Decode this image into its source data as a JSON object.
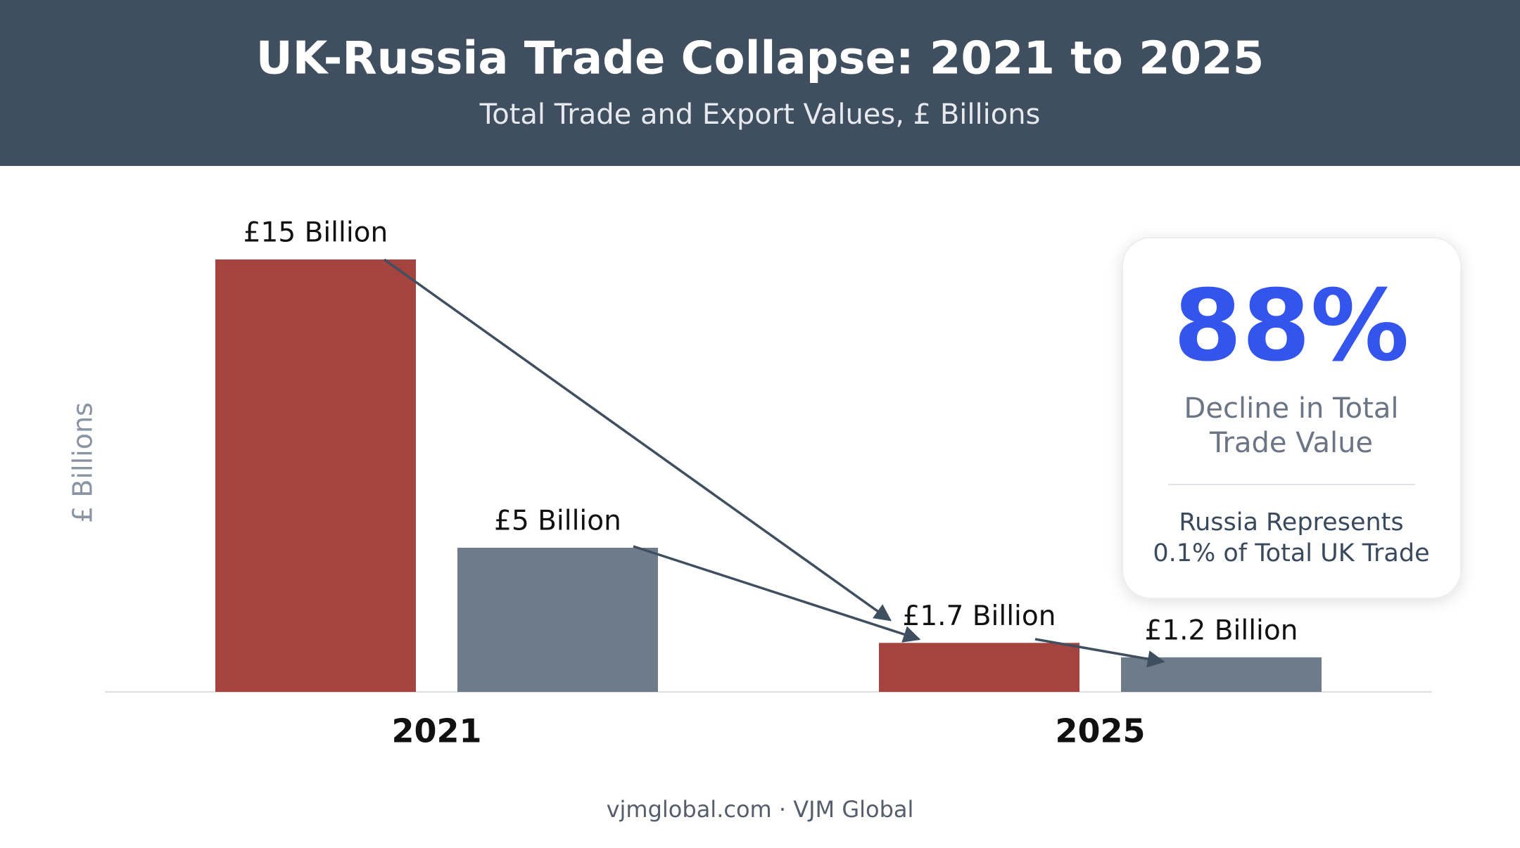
{
  "chart_data": {
    "type": "bar",
    "title": "UK-Russia Trade Collapse: 2021 to 2025",
    "subtitle": "Total Trade and Export Values, £ Billions",
    "y_label": "£ Billions",
    "categories": [
      "2021",
      "2025"
    ],
    "series": [
      {
        "color": "#a5433f",
        "values": [
          15,
          1.7
        ],
        "value_labels": [
          "£15 Billion",
          "£1.7 Billion"
        ]
      },
      {
        "color": "#6e7b8b",
        "values": [
          5,
          1.2
        ],
        "value_labels": [
          "£5 Billion",
          "£1.2 Billion"
        ]
      }
    ],
    "ylim": [
      0,
      15
    ]
  },
  "callout": {
    "headline": "88%",
    "label": [
      "Decline in Total",
      "Trade Value"
    ],
    "note": [
      "Russia Represents",
      "0.1% of Total UK Trade"
    ]
  },
  "footer": "vjmglobal.com · VJM Global"
}
